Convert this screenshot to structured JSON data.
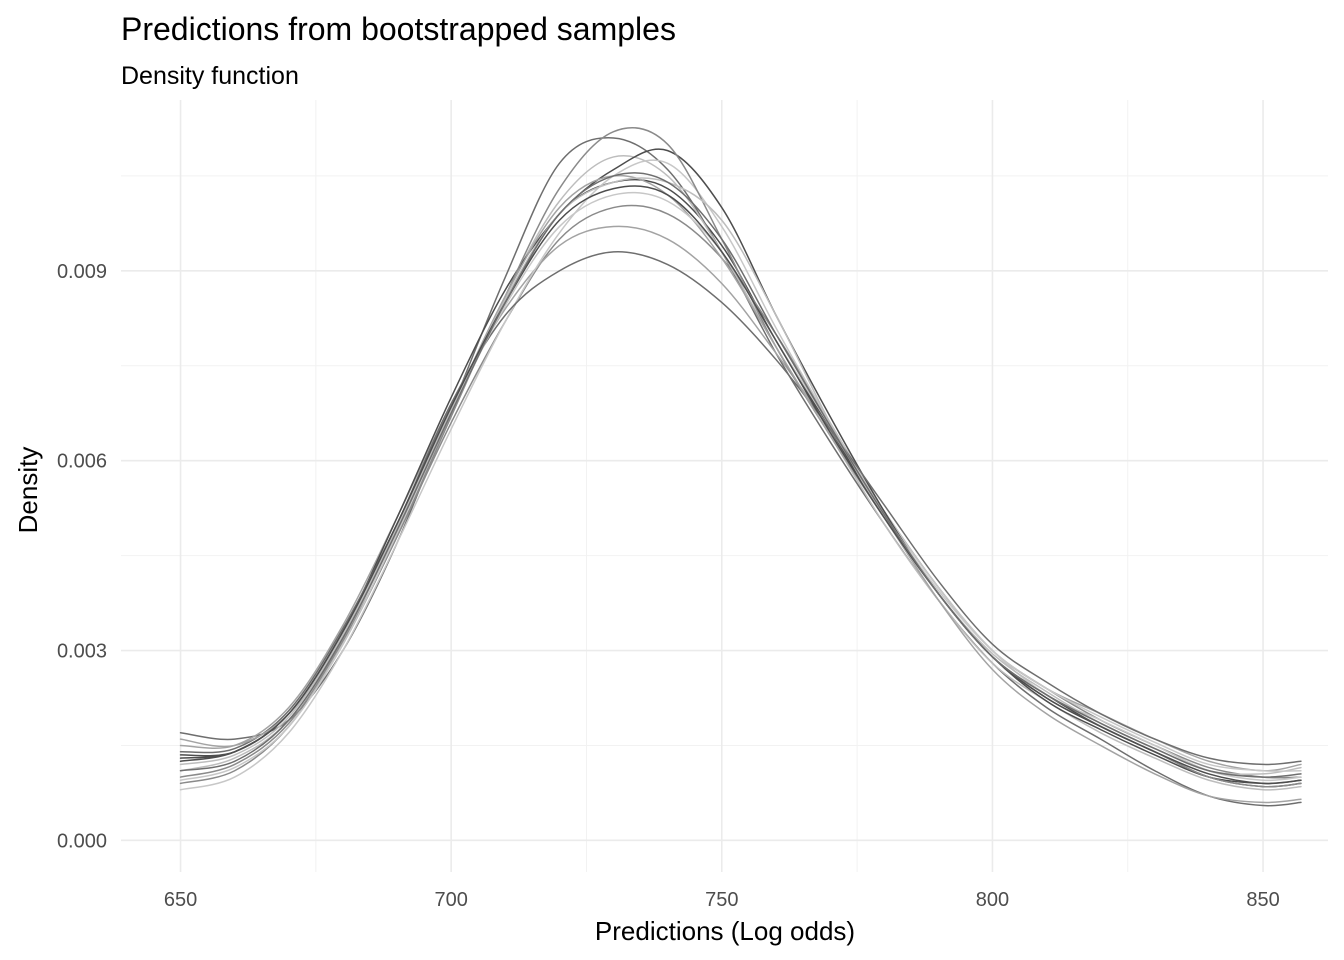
{
  "chart_data": {
    "type": "line",
    "title": "Predictions from bootstrapped samples",
    "subtitle": "Density function",
    "xlabel": "Predictions (Log odds)",
    "ylabel": "Density",
    "xlim": [
      639,
      862
    ],
    "ylim": [
      -0.0005,
      0.0117
    ],
    "x_ticks": [
      650,
      700,
      750,
      800,
      850
    ],
    "x_tick_labels": [
      "650",
      "700",
      "750",
      "800",
      "850"
    ],
    "y_ticks": [
      0.0,
      0.003,
      0.006,
      0.009
    ],
    "y_tick_labels": [
      "0.000",
      "0.003",
      "0.006",
      "0.009"
    ],
    "grid": true,
    "legend": "none",
    "line_colors": [
      "#4d4d4d",
      "#6e6e6e",
      "#8a8a8a",
      "#a3a3a3",
      "#bdbdbd",
      "#c7c7c7"
    ],
    "x": [
      650,
      660,
      670,
      680,
      690,
      700,
      710,
      720,
      730,
      740,
      750,
      760,
      770,
      780,
      790,
      800,
      810,
      820,
      830,
      840,
      850,
      857
    ],
    "series": [
      {
        "values": [
          0.00125,
          0.0014,
          0.002,
          0.0033,
          0.005,
          0.0068,
          0.0085,
          0.0099,
          0.0104,
          0.0103,
          0.0094,
          0.0079,
          0.0065,
          0.0051,
          0.0039,
          0.0029,
          0.0023,
          0.0018,
          0.0014,
          0.001,
          0.00085,
          0.0009
        ]
      },
      {
        "values": [
          0.0017,
          0.0016,
          0.0019,
          0.003,
          0.0047,
          0.0068,
          0.0089,
          0.0107,
          0.0111,
          0.0106,
          0.0093,
          0.0077,
          0.0063,
          0.005,
          0.0038,
          0.0028,
          0.0021,
          0.0016,
          0.0011,
          0.0007,
          0.00055,
          0.0006
        ]
      },
      {
        "values": [
          0.0009,
          0.0011,
          0.0018,
          0.0031,
          0.0048,
          0.0066,
          0.0082,
          0.0095,
          0.01,
          0.0099,
          0.0092,
          0.008,
          0.0066,
          0.0052,
          0.004,
          0.003,
          0.0024,
          0.0019,
          0.0015,
          0.00115,
          0.001,
          0.001
        ]
      },
      {
        "values": [
          0.0015,
          0.0015,
          0.0021,
          0.0034,
          0.0051,
          0.0069,
          0.0084,
          0.0094,
          0.0097,
          0.0095,
          0.0088,
          0.0077,
          0.0065,
          0.0052,
          0.004,
          0.003,
          0.0024,
          0.002,
          0.0016,
          0.00125,
          0.0011,
          0.0012
        ]
      },
      {
        "values": [
          0.0011,
          0.0013,
          0.0019,
          0.0032,
          0.0049,
          0.0067,
          0.0086,
          0.0101,
          0.0108,
          0.0105,
          0.0093,
          0.0078,
          0.0064,
          0.005,
          0.0038,
          0.0028,
          0.0022,
          0.0017,
          0.0013,
          0.00095,
          0.0008,
          0.00085
        ]
      },
      {
        "values": [
          0.0008,
          0.001,
          0.0017,
          0.003,
          0.0047,
          0.0065,
          0.0082,
          0.0096,
          0.0105,
          0.0107,
          0.0097,
          0.0081,
          0.0066,
          0.0052,
          0.004,
          0.003,
          0.0023,
          0.0019,
          0.0015,
          0.0011,
          0.00095,
          0.001
        ]
      },
      {
        "values": [
          0.0013,
          0.0014,
          0.002,
          0.0033,
          0.0051,
          0.007,
          0.0087,
          0.0099,
          0.0106,
          0.0109,
          0.01,
          0.0083,
          0.0067,
          0.0052,
          0.0039,
          0.0029,
          0.0022,
          0.00175,
          0.00135,
          0.001,
          0.0009,
          0.00095
        ]
      },
      {
        "values": [
          0.0014,
          0.00145,
          0.00205,
          0.00335,
          0.005,
          0.0069,
          0.0083,
          0.009,
          0.0093,
          0.0091,
          0.0085,
          0.0076,
          0.0065,
          0.0053,
          0.0041,
          0.0031,
          0.0025,
          0.002,
          0.0016,
          0.0013,
          0.0012,
          0.00125
        ]
      },
      {
        "values": [
          0.001,
          0.0012,
          0.00185,
          0.00315,
          0.0048,
          0.0067,
          0.0086,
          0.0103,
          0.0112,
          0.011,
          0.0095,
          0.0078,
          0.0064,
          0.0051,
          0.0039,
          0.0029,
          0.00225,
          0.0018,
          0.0014,
          0.001,
          0.00085,
          0.0009
        ]
      },
      {
        "values": [
          0.0016,
          0.0015,
          0.002,
          0.0032,
          0.0049,
          0.0068,
          0.0086,
          0.01,
          0.0105,
          0.0102,
          0.0092,
          0.0078,
          0.0064,
          0.0051,
          0.0038,
          0.0027,
          0.002,
          0.0015,
          0.00105,
          0.0007,
          0.0006,
          0.00065
        ]
      },
      {
        "values": [
          0.0012,
          0.00135,
          0.00195,
          0.00325,
          0.00495,
          0.0068,
          0.00855,
          0.0099,
          0.0104,
          0.0104,
          0.0098,
          0.0083,
          0.0066,
          0.0051,
          0.0039,
          0.00295,
          0.00235,
          0.00185,
          0.00145,
          0.0011,
          0.00105,
          0.00115
        ]
      },
      {
        "values": [
          0.00095,
          0.00115,
          0.0018,
          0.0031,
          0.00485,
          0.00675,
          0.00845,
          0.0097,
          0.0102,
          0.0101,
          0.0093,
          0.0079,
          0.00655,
          0.00515,
          0.00395,
          0.003,
          0.0024,
          0.00195,
          0.00155,
          0.0012,
          0.0011,
          0.0011
        ]
      },
      {
        "values": [
          0.00135,
          0.0014,
          0.002,
          0.0033,
          0.005,
          0.00685,
          0.0085,
          0.0098,
          0.0103,
          0.0102,
          0.0093,
          0.0079,
          0.00645,
          0.0051,
          0.0039,
          0.0029,
          0.00225,
          0.0018,
          0.0014,
          0.00105,
          0.0009,
          0.00095
        ]
      },
      {
        "values": [
          0.0011,
          0.00125,
          0.0019,
          0.0032,
          0.0049,
          0.00675,
          0.0085,
          0.0099,
          0.0105,
          0.0104,
          0.0095,
          0.008,
          0.00655,
          0.00515,
          0.0039,
          0.0029,
          0.0023,
          0.00185,
          0.00145,
          0.0011,
          0.001,
          0.00105
        ]
      }
    ]
  }
}
